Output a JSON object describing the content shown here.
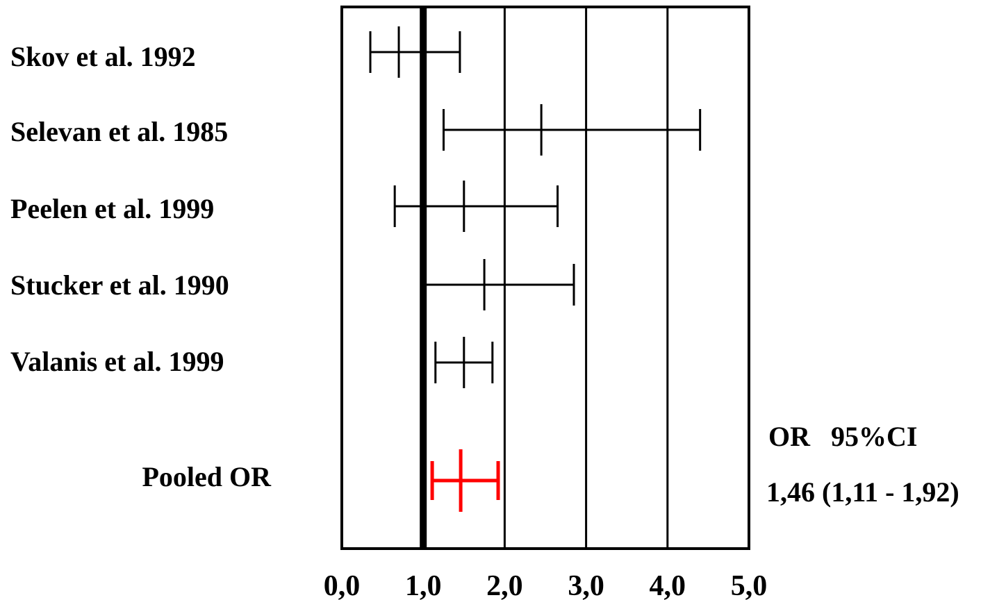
{
  "chart_data": {
    "type": "forest",
    "title": "",
    "xlabel": "",
    "ylabel": "",
    "xlim": [
      0,
      5
    ],
    "x_ticks": [
      "0,0",
      "1,0",
      "2,0",
      "3,0",
      "4,0",
      "5,0"
    ],
    "x_tick_values": [
      0,
      1,
      2,
      3,
      4,
      5
    ],
    "reference_line": 1.0,
    "grid": "vertical",
    "studies": [
      {
        "label": "Skov et al. 1992",
        "or": 0.7,
        "ci_low": 0.35,
        "ci_high": 1.45
      },
      {
        "label": "Selevan et al. 1985",
        "or": 2.45,
        "ci_low": 1.25,
        "ci_high": 4.4
      },
      {
        "label": "Peelen et al. 1999",
        "or": 1.5,
        "ci_low": 0.65,
        "ci_high": 2.65
      },
      {
        "label": "Stucker et al. 1990",
        "or": 1.75,
        "ci_low": 1.0,
        "ci_high": 2.85
      },
      {
        "label": "Valanis et al.  1999",
        "or": 1.5,
        "ci_low": 1.15,
        "ci_high": 1.85
      }
    ],
    "pooled": {
      "label": "Pooled OR",
      "or": 1.46,
      "ci_low": 1.11,
      "ci_high": 1.92,
      "color": "#ff0000"
    },
    "annotation_header": "OR   95%CI",
    "annotation_value": "1,46 (1,11 - 1,92)"
  }
}
